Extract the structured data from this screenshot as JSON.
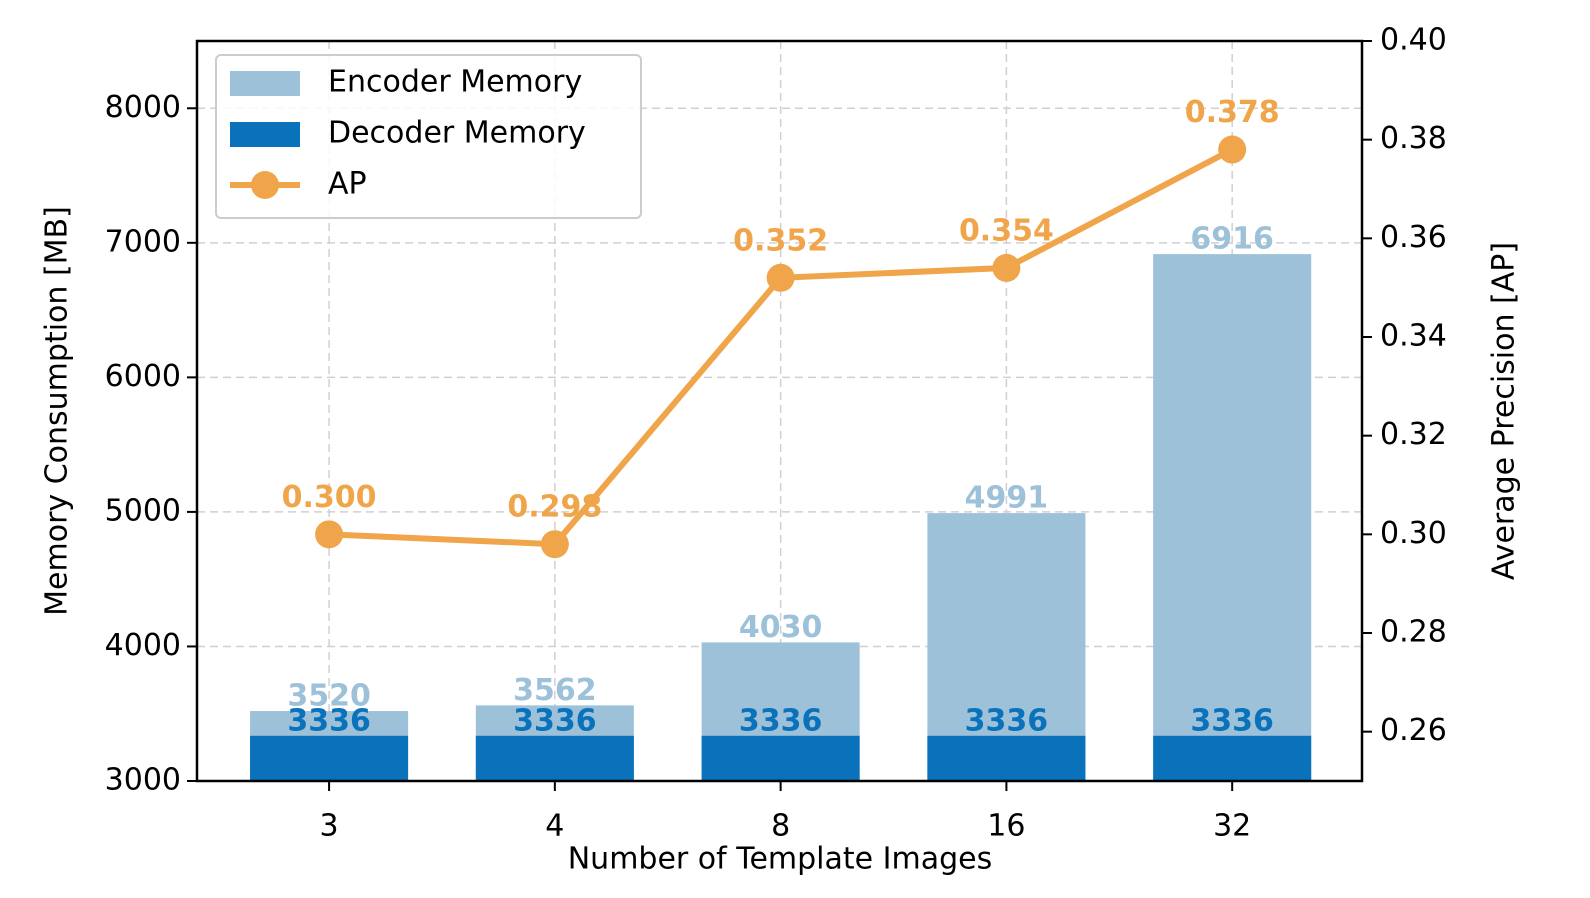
{
  "chart_data": {
    "type": "bar",
    "xlabel": "Number of Template Images",
    "ylabel": "Memory Consumption [MB]",
    "y2label": "Average Precision [AP]",
    "categories": [
      "3",
      "4",
      "8",
      "16",
      "32"
    ],
    "series": [
      {
        "name": "Encoder Memory",
        "type": "bar",
        "color": "#9ec1da",
        "values": [
          3520,
          3562,
          4030,
          4991,
          6916
        ]
      },
      {
        "name": "Decoder Memory",
        "type": "bar",
        "color": "#0a72bb",
        "values": [
          3336,
          3336,
          3336,
          3336,
          3336
        ]
      },
      {
        "name": "AP",
        "type": "line",
        "axis": "y2",
        "color": "#f0a54a",
        "values": [
          0.3,
          0.298,
          0.352,
          0.354,
          0.378
        ],
        "value_labels": [
          "0.300",
          "0.298",
          "0.352",
          "0.354",
          "0.378"
        ]
      }
    ],
    "ylim": [
      3000,
      8500
    ],
    "yticks": [
      3000,
      4000,
      5000,
      6000,
      7000,
      8000
    ],
    "y2lim": [
      0.25,
      0.4
    ],
    "y2ticks": [
      0.26,
      0.28,
      {
        "value": 0.3,
        "label": "0.30"
      },
      0.32,
      0.34,
      0.36,
      0.38,
      {
        "value": 0.4,
        "label": "0.40"
      }
    ],
    "grid": true,
    "legend": "upper left"
  }
}
